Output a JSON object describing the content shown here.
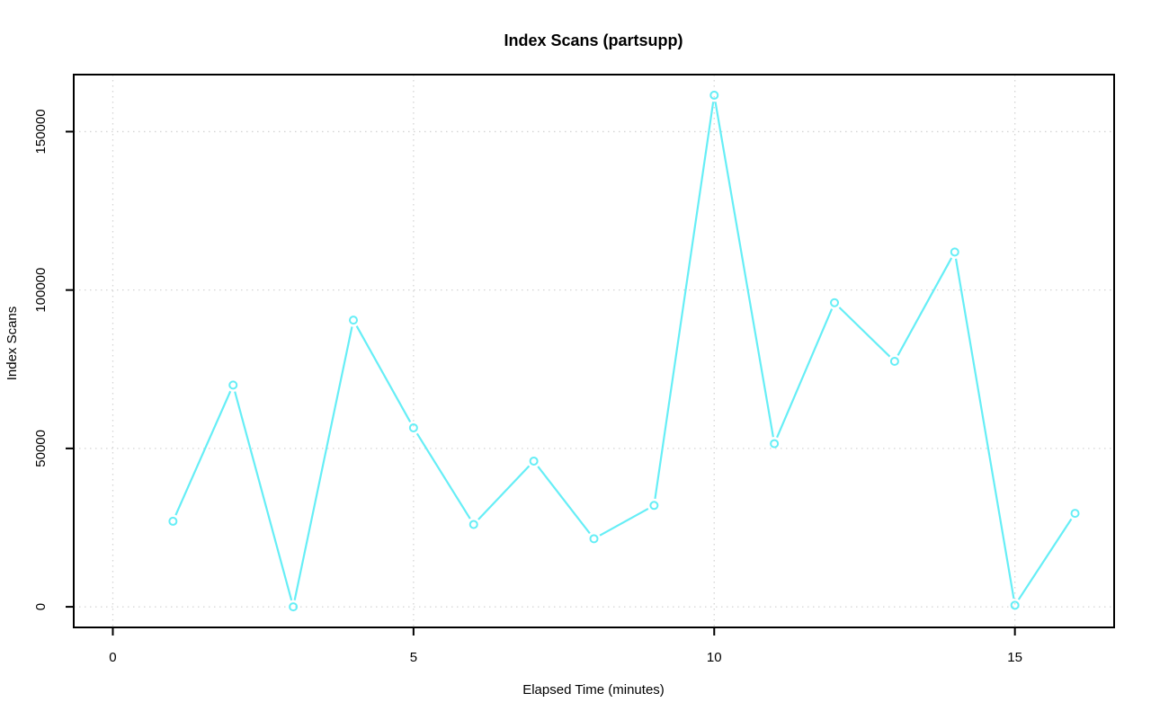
{
  "page": {
    "background_color": "#ffffff"
  },
  "chart_data": {
    "type": "line",
    "title": "Index Scans (partsupp)",
    "xlabel": "Elapsed Time (minutes)",
    "ylabel": "Index Scans",
    "x": [
      1,
      2,
      3,
      4,
      5,
      6,
      7,
      8,
      9,
      10,
      11,
      12,
      13,
      14,
      15,
      16
    ],
    "values": [
      27000,
      70000,
      0,
      90500,
      56500,
      26000,
      46000,
      21500,
      32000,
      161500,
      51500,
      96000,
      77500,
      112000,
      500,
      29500
    ],
    "series": [
      {
        "name": "index_scans",
        "values": [
          27000,
          70000,
          0,
          90500,
          56500,
          26000,
          46000,
          21500,
          32000,
          161500,
          51500,
          96000,
          77500,
          112000,
          500,
          29500
        ]
      }
    ],
    "xticks": [
      0,
      5,
      10,
      15
    ],
    "yticks": [
      0,
      50000,
      100000,
      150000
    ],
    "xtick_labels": [
      "0",
      "5",
      "10",
      "15"
    ],
    "ytick_labels": [
      "0",
      "50000",
      "100000",
      "150000"
    ],
    "xlim": [
      -0.65,
      16.65
    ],
    "ylim": [
      -6500,
      168000
    ],
    "grid": "dotted",
    "legend_position": "none",
    "marker": "open-circle",
    "line_style": "solid-with-point-gaps",
    "colors": {
      "series": "#66EEF6",
      "grid": "#D4D4D4",
      "axis": "#000000",
      "background": "#FFFFFF"
    }
  }
}
